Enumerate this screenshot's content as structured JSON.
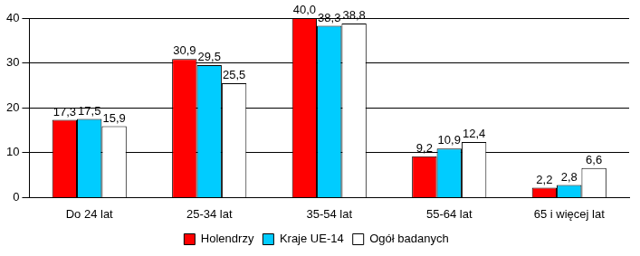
{
  "chart_data": {
    "type": "bar",
    "categories": [
      "Do 24 lat",
      "25-34 lat",
      "35-54 lat",
      "55-64 lat",
      "65 i więcej lat"
    ],
    "series": [
      {
        "name": "Holendrzy",
        "color": "#ff0000",
        "values": [
          17.3,
          30.9,
          40.0,
          9.2,
          2.2
        ],
        "value_labels": [
          "17,3",
          "30,9",
          "40,0",
          "9,2",
          "2,2"
        ]
      },
      {
        "name": "Kraje UE-14",
        "color": "#00ccff",
        "values": [
          17.5,
          29.5,
          38.3,
          10.9,
          2.8
        ],
        "value_labels": [
          "17,5",
          "29,5",
          "38,3",
          "10,9",
          "2,8"
        ]
      },
      {
        "name": "Ogół badanych",
        "color": "#ffffff",
        "values": [
          15.9,
          25.5,
          38.8,
          12.4,
          6.6
        ],
        "value_labels": [
          "15,9",
          "25,5",
          "38,8",
          "12,4",
          "6,6"
        ]
      }
    ],
    "ylim": [
      0,
      40
    ],
    "yticks": [
      0,
      10,
      20,
      30,
      40
    ],
    "grid": true,
    "legend": "bottom",
    "data_labels": true
  }
}
